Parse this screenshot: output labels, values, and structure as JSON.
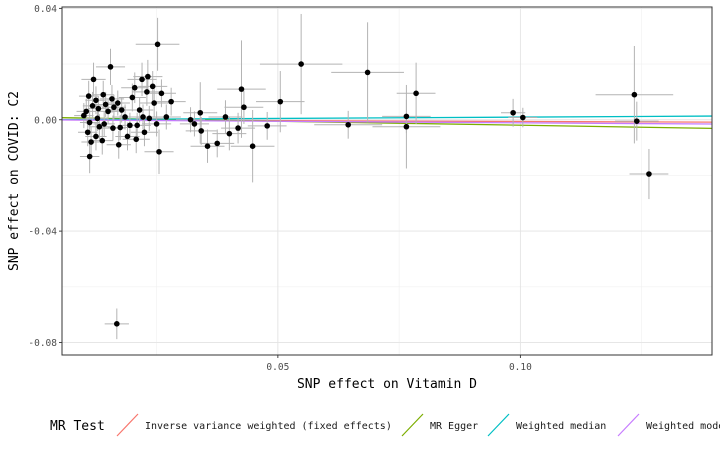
{
  "chart_data": {
    "type": "scatter",
    "title": "",
    "xlabel": "SNP effect on Vitamin D",
    "ylabel": "SNP effect on COVID: C2",
    "xlim": [
      0.0055,
      0.1395
    ],
    "ylim": [
      -0.0845,
      0.0405
    ],
    "x_ticks": [
      0.05,
      0.1
    ],
    "x_tick_labels": [
      "0.05",
      "0.10"
    ],
    "y_ticks": [
      -0.08,
      -0.04,
      0.0,
      0.04
    ],
    "y_tick_labels": [
      "-0.08",
      "-0.04",
      "0.00",
      "0.04"
    ],
    "grid": true,
    "legend_position": "bottom",
    "legend_title": "MR Test",
    "lines": [
      {
        "name": "Inverse variance weighted (fixed effects)",
        "color": "#F8766D",
        "slope": -0.0062,
        "intercept": 0.0
      },
      {
        "name": "MR Egger",
        "color": "#7CAE00",
        "slope": -0.0286,
        "intercept": 0.0009
      },
      {
        "name": "Weighted median",
        "color": "#00BFC4",
        "slope": 0.0095,
        "intercept": 0.0
      },
      {
        "name": "Weighted mode",
        "color": "#C77CFF",
        "slope": -0.011,
        "intercept": 0.0
      }
    ],
    "points": [
      {
        "x": 0.0168,
        "y": -0.0733,
        "xerr": 0.0025,
        "yerr": 0.0055
      },
      {
        "x": 0.0252,
        "y": 0.0271,
        "xerr": 0.0045,
        "yerr": 0.0095
      },
      {
        "x": 0.0155,
        "y": 0.019,
        "xerr": 0.003,
        "yerr": 0.0065
      },
      {
        "x": 0.012,
        "y": 0.0145,
        "xerr": 0.0025,
        "yerr": 0.006
      },
      {
        "x": 0.011,
        "y": 0.0085,
        "xerr": 0.002,
        "yerr": 0.0055
      },
      {
        "x": 0.0118,
        "y": 0.005,
        "xerr": 0.002,
        "yerr": 0.005
      },
      {
        "x": 0.0105,
        "y": 0.003,
        "xerr": 0.002,
        "yerr": 0.0045
      },
      {
        "x": 0.01,
        "y": 0.0015,
        "xerr": 0.002,
        "yerr": 0.0045
      },
      {
        "x": 0.0112,
        "y": -0.001,
        "xerr": 0.002,
        "yerr": 0.0045
      },
      {
        "x": 0.0108,
        "y": -0.0045,
        "xerr": 0.002,
        "yerr": 0.005
      },
      {
        "x": 0.0115,
        "y": -0.008,
        "xerr": 0.002,
        "yerr": 0.0055
      },
      {
        "x": 0.0112,
        "y": -0.0132,
        "xerr": 0.002,
        "yerr": 0.006
      },
      {
        "x": 0.0125,
        "y": 0.007,
        "xerr": 0.0022,
        "yerr": 0.005
      },
      {
        "x": 0.013,
        "y": 0.004,
        "xerr": 0.0022,
        "yerr": 0.0045
      },
      {
        "x": 0.0128,
        "y": 0.0005,
        "xerr": 0.0022,
        "yerr": 0.0045
      },
      {
        "x": 0.0132,
        "y": -0.0025,
        "xerr": 0.0022,
        "yerr": 0.0045
      },
      {
        "x": 0.0125,
        "y": -0.006,
        "xerr": 0.0022,
        "yerr": 0.005
      },
      {
        "x": 0.0138,
        "y": -0.0075,
        "xerr": 0.0022,
        "yerr": 0.005
      },
      {
        "x": 0.014,
        "y": 0.009,
        "xerr": 0.0022,
        "yerr": 0.005
      },
      {
        "x": 0.0145,
        "y": 0.0055,
        "xerr": 0.0022,
        "yerr": 0.0045
      },
      {
        "x": 0.0142,
        "y": -0.0015,
        "xerr": 0.0022,
        "yerr": 0.0045
      },
      {
        "x": 0.015,
        "y": 0.003,
        "xerr": 0.0022,
        "yerr": 0.0045
      },
      {
        "x": 0.0158,
        "y": 0.0075,
        "xerr": 0.0025,
        "yerr": 0.005
      },
      {
        "x": 0.016,
        "y": -0.003,
        "xerr": 0.0025,
        "yerr": 0.0045
      },
      {
        "x": 0.0162,
        "y": 0.0045,
        "xerr": 0.0025,
        "yerr": 0.0045
      },
      {
        "x": 0.017,
        "y": 0.006,
        "xerr": 0.0025,
        "yerr": 0.0045
      },
      {
        "x": 0.0172,
        "y": -0.009,
        "xerr": 0.0025,
        "yerr": 0.005
      },
      {
        "x": 0.0175,
        "y": -0.0028,
        "xerr": 0.0025,
        "yerr": 0.0045
      },
      {
        "x": 0.0178,
        "y": 0.0035,
        "xerr": 0.0025,
        "yerr": 0.0045
      },
      {
        "x": 0.0185,
        "y": 0.001,
        "xerr": 0.0025,
        "yerr": 0.0045
      },
      {
        "x": 0.019,
        "y": -0.006,
        "xerr": 0.0025,
        "yerr": 0.005
      },
      {
        "x": 0.0195,
        "y": -0.002,
        "xerr": 0.0025,
        "yerr": 0.0045
      },
      {
        "x": 0.02,
        "y": 0.008,
        "xerr": 0.0028,
        "yerr": 0.005
      },
      {
        "x": 0.0205,
        "y": 0.0115,
        "xerr": 0.0028,
        "yerr": 0.0055
      },
      {
        "x": 0.0208,
        "y": -0.007,
        "xerr": 0.0028,
        "yerr": 0.005
      },
      {
        "x": 0.021,
        "y": -0.002,
        "xerr": 0.0028,
        "yerr": 0.0045
      },
      {
        "x": 0.0215,
        "y": 0.0035,
        "xerr": 0.0028,
        "yerr": 0.0045
      },
      {
        "x": 0.022,
        "y": 0.0145,
        "xerr": 0.003,
        "yerr": 0.006
      },
      {
        "x": 0.0222,
        "y": 0.001,
        "xerr": 0.0028,
        "yerr": 0.0045
      },
      {
        "x": 0.0225,
        "y": -0.0045,
        "xerr": 0.0028,
        "yerr": 0.005
      },
      {
        "x": 0.023,
        "y": 0.01,
        "xerr": 0.003,
        "yerr": 0.005
      },
      {
        "x": 0.0232,
        "y": 0.0155,
        "xerr": 0.003,
        "yerr": 0.006
      },
      {
        "x": 0.0235,
        "y": 0.0005,
        "xerr": 0.0028,
        "yerr": 0.0045
      },
      {
        "x": 0.0242,
        "y": 0.012,
        "xerr": 0.003,
        "yerr": 0.0055
      },
      {
        "x": 0.0245,
        "y": 0.006,
        "xerr": 0.003,
        "yerr": 0.005
      },
      {
        "x": 0.025,
        "y": -0.0015,
        "xerr": 0.003,
        "yerr": 0.0045
      },
      {
        "x": 0.0255,
        "y": -0.0115,
        "xerr": 0.003,
        "yerr": 0.008
      },
      {
        "x": 0.026,
        "y": 0.0095,
        "xerr": 0.003,
        "yerr": 0.005
      },
      {
        "x": 0.027,
        "y": 0.001,
        "xerr": 0.003,
        "yerr": 0.0045
      },
      {
        "x": 0.028,
        "y": 0.0065,
        "xerr": 0.003,
        "yerr": 0.005
      },
      {
        "x": 0.032,
        "y": 0.0,
        "xerr": 0.003,
        "yerr": 0.0045
      },
      {
        "x": 0.0328,
        "y": -0.0015,
        "xerr": 0.003,
        "yerr": 0.0045
      },
      {
        "x": 0.034,
        "y": 0.0025,
        "xerr": 0.0035,
        "yerr": 0.011
      },
      {
        "x": 0.0342,
        "y": -0.004,
        "xerr": 0.0032,
        "yerr": 0.005
      },
      {
        "x": 0.0355,
        "y": -0.0095,
        "xerr": 0.0035,
        "yerr": 0.006
      },
      {
        "x": 0.0375,
        "y": -0.0085,
        "xerr": 0.0035,
        "yerr": 0.005
      },
      {
        "x": 0.0392,
        "y": 0.001,
        "xerr": 0.0035,
        "yerr": 0.006
      },
      {
        "x": 0.04,
        "y": -0.005,
        "xerr": 0.0035,
        "yerr": 0.006
      },
      {
        "x": 0.0418,
        "y": -0.003,
        "xerr": 0.0035,
        "yerr": 0.0055
      },
      {
        "x": 0.0425,
        "y": 0.011,
        "xerr": 0.005,
        "yerr": 0.0175
      },
      {
        "x": 0.043,
        "y": 0.0045,
        "xerr": 0.004,
        "yerr": 0.006
      },
      {
        "x": 0.0448,
        "y": -0.0095,
        "xerr": 0.0045,
        "yerr": 0.013
      },
      {
        "x": 0.0478,
        "y": -0.0022,
        "xerr": 0.004,
        "yerr": 0.005
      },
      {
        "x": 0.0505,
        "y": 0.0065,
        "xerr": 0.005,
        "yerr": 0.011
      },
      {
        "x": 0.0548,
        "y": 0.02,
        "xerr": 0.0085,
        "yerr": 0.018
      },
      {
        "x": 0.0645,
        "y": -0.0018,
        "xerr": 0.007,
        "yerr": 0.005
      },
      {
        "x": 0.0685,
        "y": 0.017,
        "xerr": 0.0075,
        "yerr": 0.018
      },
      {
        "x": 0.0765,
        "y": 0.0012,
        "xerr": 0.005,
        "yerr": 0.006
      },
      {
        "x": 0.0765,
        "y": -0.0025,
        "xerr": 0.007,
        "yerr": 0.015
      },
      {
        "x": 0.0785,
        "y": 0.0095,
        "xerr": 0.004,
        "yerr": 0.011
      },
      {
        "x": 0.0985,
        "y": 0.0025,
        "xerr": 0.0025,
        "yerr": 0.005
      },
      {
        "x": 0.1005,
        "y": 0.0008,
        "xerr": 0.003,
        "yerr": 0.0035
      },
      {
        "x": 0.1235,
        "y": 0.009,
        "xerr": 0.008,
        "yerr": 0.0175
      },
      {
        "x": 0.124,
        "y": -0.0005,
        "xerr": 0.0045,
        "yerr": 0.007
      },
      {
        "x": 0.1265,
        "y": -0.0195,
        "xerr": 0.004,
        "yerr": 0.009
      }
    ]
  }
}
